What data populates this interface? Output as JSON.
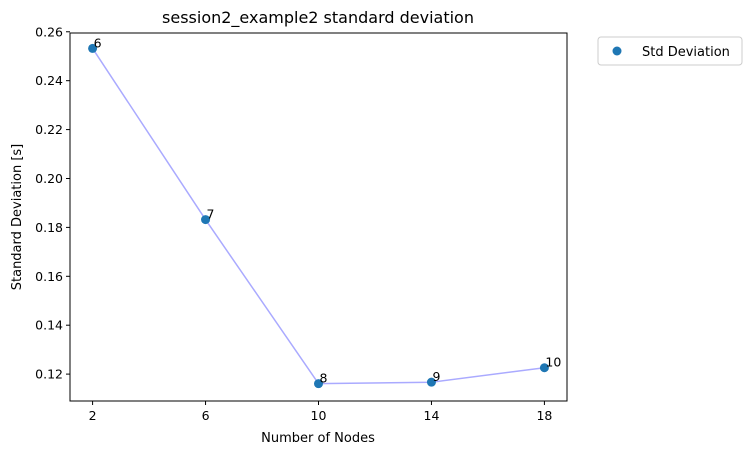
{
  "chart_data": {
    "type": "line",
    "title": "session2_example2 standard deviation",
    "xlabel": "Number of Nodes",
    "ylabel": "Standard Deviation [s]",
    "x": [
      2,
      6,
      10,
      14,
      18
    ],
    "xticks": [
      "2",
      "6",
      "10",
      "14",
      "18"
    ],
    "xlim": [
      1.2,
      18.8
    ],
    "yticks": [
      0.12,
      0.14,
      0.16,
      0.18,
      0.2,
      0.22,
      0.24,
      0.26
    ],
    "ytick_labels": [
      "0.12",
      "0.14",
      "0.16",
      "0.18",
      "0.20",
      "0.22",
      "0.24",
      "0.26"
    ],
    "ylim": [
      0.109,
      0.2595
    ],
    "series": [
      {
        "name": "Std Deviation",
        "values": [
          0.2532,
          0.1832,
          0.1161,
          0.1167,
          0.1226
        ],
        "point_labels": [
          "6",
          "7",
          "8",
          "9",
          "10"
        ],
        "marker_color": "#1f77b4",
        "line_color": "#aaaaff"
      }
    ],
    "legend": {
      "position": "outside-top-right",
      "entries": [
        "Std Deviation"
      ]
    },
    "grid": false
  }
}
